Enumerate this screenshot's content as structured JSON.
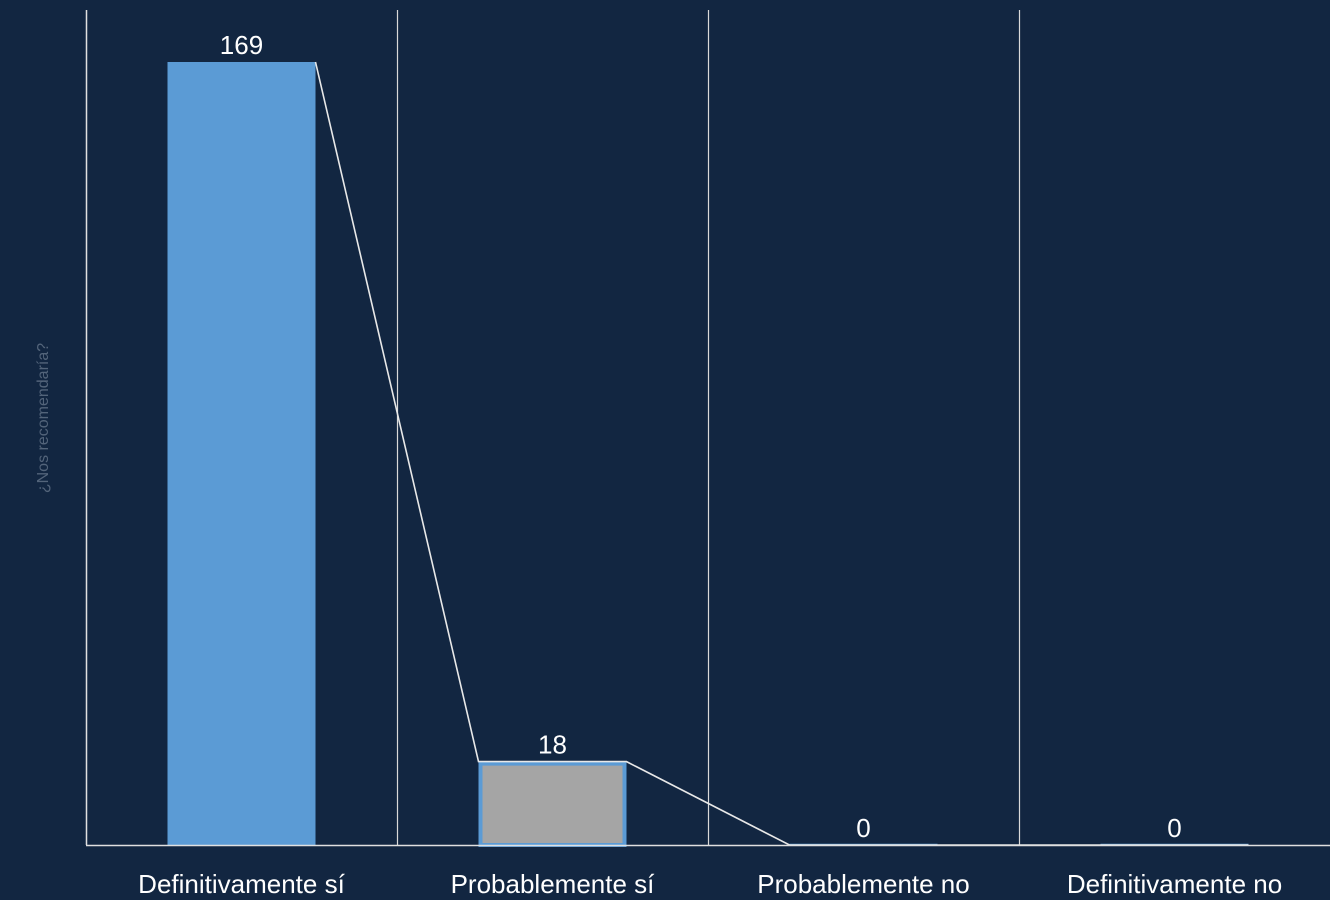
{
  "chart_data": {
    "type": "bar",
    "title": "",
    "xlabel": "",
    "ylabel": "¿Nos recomendaría?",
    "categories": [
      "Definitivamente sí",
      "Probablemente sí",
      "Probablemente no",
      "Definitivamente no"
    ],
    "series": [
      {
        "values": [
          169,
          18,
          0,
          0
        ],
        "data_labels": [
          "169",
          "18",
          "0",
          "0"
        ],
        "bar_colors": [
          "#5b9bd5",
          "#a5a5a5",
          "#5b9bd5",
          "#5b9bd5"
        ],
        "bar_outline_colors": [
          "#5b9bd5",
          "#5b9bd5",
          "#5b9bd5",
          "#5b9bd5"
        ]
      }
    ],
    "overlay_line": {
      "description": "connector line joining the top edges of the bars",
      "values": [
        169,
        18,
        0,
        0
      ],
      "color": "#e8e8e8"
    },
    "ylim": [
      0,
      190
    ],
    "grid": {
      "vertical_category_separators": true,
      "horizontal": false
    },
    "legend": "none",
    "colors": {
      "background": "#122641",
      "axis": "#e0e0e0",
      "separator": "#d9d9d9",
      "text": "#ffffff",
      "axis_title": "#53647a"
    }
  }
}
